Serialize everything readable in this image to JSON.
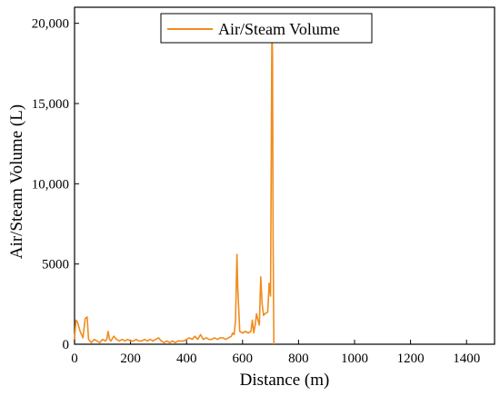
{
  "chart_data": {
    "type": "line",
    "xlabel": "Distance (m)",
    "ylabel": "Air/Steam Volume (L)",
    "xlim": [
      0,
      1500
    ],
    "ylim": [
      0,
      21000
    ],
    "x_ticks": [
      0,
      200,
      400,
      600,
      800,
      1000,
      1200,
      1400
    ],
    "x_tick_labels": [
      "0",
      "200",
      "400",
      "600",
      "800",
      "1000",
      "1200",
      "1400"
    ],
    "y_ticks": [
      0,
      5000,
      10000,
      15000,
      20000
    ],
    "y_tick_labels": [
      "0",
      "5000",
      "10,000",
      "15,000",
      "20,000"
    ],
    "grid": false,
    "legend_position": "top-center",
    "series": [
      {
        "name": "Air/Steam Volume",
        "color": "#f08c1e",
        "x": [
          0,
          5,
          10,
          20,
          30,
          38,
          45,
          50,
          60,
          70,
          80,
          90,
          100,
          110,
          115,
          120,
          125,
          130,
          140,
          150,
          160,
          170,
          180,
          190,
          200,
          210,
          220,
          230,
          240,
          250,
          260,
          270,
          280,
          290,
          300,
          310,
          320,
          330,
          340,
          350,
          360,
          370,
          380,
          390,
          400,
          410,
          420,
          430,
          440,
          450,
          460,
          470,
          480,
          490,
          500,
          510,
          520,
          530,
          540,
          550,
          560,
          565,
          570,
          575,
          578,
          580,
          583,
          590,
          600,
          610,
          620,
          630,
          635,
          640,
          645,
          650,
          655,
          660,
          665,
          670,
          675,
          680,
          690,
          695,
          700,
          705,
          707,
          709,
          711,
          712
        ],
        "y": [
          300,
          1500,
          1400,
          800,
          400,
          1600,
          1700,
          300,
          100,
          300,
          200,
          100,
          300,
          200,
          300,
          800,
          300,
          200,
          500,
          300,
          200,
          300,
          200,
          300,
          200,
          200,
          300,
          200,
          200,
          300,
          200,
          300,
          200,
          300,
          400,
          200,
          100,
          200,
          100,
          200,
          100,
          200,
          200,
          200,
          300,
          400,
          300,
          500,
          300,
          600,
          300,
          400,
          300,
          300,
          400,
          300,
          400,
          400,
          300,
          400,
          500,
          700,
          600,
          1500,
          4000,
          5600,
          3500,
          800,
          700,
          800,
          700,
          800,
          1500,
          700,
          1200,
          1900,
          1500,
          1200,
          4200,
          2500,
          1800,
          1900,
          2000,
          3800,
          3000,
          20100,
          18000,
          7000,
          2000,
          0
        ]
      }
    ]
  }
}
